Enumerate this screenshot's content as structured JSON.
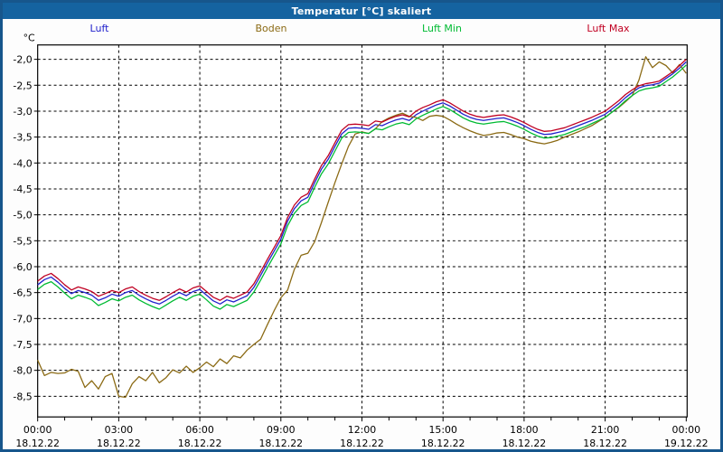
{
  "header": {
    "title": "Temperatur [°C] skaliert"
  },
  "colors": {
    "titlebar_bg": "#1563a0",
    "window_border": "#17568c",
    "titlebar_text": "#ffffff",
    "axis": "#000000",
    "grid": "#000000",
    "plot_bg": "#ffffff"
  },
  "chart_data": {
    "type": "line",
    "title": "Temperatur [°C] skaliert",
    "ylabel": "°C",
    "xlabel": "",
    "grid": true,
    "legend_position": "top",
    "x_start_hours": 0,
    "x_end_hours": 24,
    "x_step_hours": 0.25,
    "ylim": [
      -8.5,
      -2.0
    ],
    "y_ticks": [
      {
        "value": -2.0,
        "label": "-2,0"
      },
      {
        "value": -2.5,
        "label": "-2,5"
      },
      {
        "value": -3.0,
        "label": "-3,0"
      },
      {
        "value": -3.5,
        "label": "-3,5"
      },
      {
        "value": -4.0,
        "label": "-4,0"
      },
      {
        "value": -4.5,
        "label": "-4,5"
      },
      {
        "value": -5.0,
        "label": "-5,0"
      },
      {
        "value": -5.5,
        "label": "-5,5"
      },
      {
        "value": -6.0,
        "label": "-6,0"
      },
      {
        "value": -6.5,
        "label": "-6,5"
      },
      {
        "value": -7.0,
        "label": "-7,0"
      },
      {
        "value": -7.5,
        "label": "-7,5"
      },
      {
        "value": -8.0,
        "label": "-8,0"
      },
      {
        "value": -8.5,
        "label": "-8,5"
      }
    ],
    "x_ticks": [
      {
        "t": 0,
        "time": "00:00",
        "date": "18.12.22"
      },
      {
        "t": 3,
        "time": "03:00",
        "date": "18.12.22"
      },
      {
        "t": 6,
        "time": "06:00",
        "date": "18.12.22"
      },
      {
        "t": 9,
        "time": "09:00",
        "date": "18.12.22"
      },
      {
        "t": 12,
        "time": "12:00",
        "date": "18.12.22"
      },
      {
        "t": 15,
        "time": "15:00",
        "date": "18.12.22"
      },
      {
        "t": 18,
        "time": "18:00",
        "date": "18.12.22"
      },
      {
        "t": 21,
        "time": "21:00",
        "date": "18.12.22"
      },
      {
        "t": 24,
        "time": "00:00",
        "date": "19.12.22"
      }
    ],
    "x_minor_tick_hours": 1,
    "series": [
      {
        "name": "Luft",
        "color": "#2222cc",
        "values": [
          -6.35,
          -6.25,
          -6.2,
          -6.3,
          -6.42,
          -6.52,
          -6.46,
          -6.5,
          -6.55,
          -6.65,
          -6.6,
          -6.53,
          -6.57,
          -6.5,
          -6.46,
          -6.55,
          -6.62,
          -6.68,
          -6.72,
          -6.65,
          -6.57,
          -6.5,
          -6.56,
          -6.48,
          -6.44,
          -6.55,
          -6.66,
          -6.72,
          -6.64,
          -6.68,
          -6.62,
          -6.56,
          -6.4,
          -6.17,
          -5.93,
          -5.7,
          -5.47,
          -5.12,
          -4.88,
          -4.73,
          -4.66,
          -4.38,
          -4.12,
          -3.93,
          -3.68,
          -3.44,
          -3.33,
          -3.32,
          -3.33,
          -3.35,
          -3.26,
          -3.28,
          -3.22,
          -3.17,
          -3.14,
          -3.18,
          -3.07,
          -3.0,
          -2.94,
          -2.88,
          -2.84,
          -2.9,
          -2.98,
          -3.06,
          -3.12,
          -3.16,
          -3.18,
          -3.16,
          -3.14,
          -3.13,
          -3.17,
          -3.22,
          -3.28,
          -3.35,
          -3.41,
          -3.45,
          -3.44,
          -3.41,
          -3.38,
          -3.33,
          -3.28,
          -3.23,
          -3.18,
          -3.12,
          -3.06,
          -2.96,
          -2.86,
          -2.74,
          -2.64,
          -2.55,
          -2.51,
          -2.49,
          -2.46,
          -2.37,
          -2.28,
          -2.17,
          -2.05
        ]
      },
      {
        "name": "Boden",
        "color": "#8b6a14",
        "values": [
          -7.8,
          -8.1,
          -8.04,
          -8.06,
          -8.05,
          -7.98,
          -8.02,
          -8.33,
          -8.2,
          -8.36,
          -8.12,
          -8.06,
          -8.5,
          -8.52,
          -8.26,
          -8.12,
          -8.2,
          -8.04,
          -8.24,
          -8.14,
          -7.99,
          -8.05,
          -7.92,
          -8.04,
          -7.95,
          -7.84,
          -7.93,
          -7.78,
          -7.87,
          -7.72,
          -7.76,
          -7.61,
          -7.5,
          -7.4,
          -7.12,
          -6.85,
          -6.6,
          -6.45,
          -6.05,
          -5.78,
          -5.74,
          -5.52,
          -5.15,
          -4.76,
          -4.38,
          -4.02,
          -3.68,
          -3.44,
          -3.4,
          -3.43,
          -3.34,
          -3.2,
          -3.13,
          -3.08,
          -3.04,
          -3.1,
          -3.12,
          -3.18,
          -3.1,
          -3.08,
          -3.1,
          -3.17,
          -3.25,
          -3.32,
          -3.38,
          -3.43,
          -3.47,
          -3.45,
          -3.42,
          -3.41,
          -3.45,
          -3.5,
          -3.53,
          -3.58,
          -3.61,
          -3.63,
          -3.6,
          -3.56,
          -3.5,
          -3.45,
          -3.4,
          -3.34,
          -3.28,
          -3.2,
          -3.12,
          -3.02,
          -2.93,
          -2.82,
          -2.7,
          -2.4,
          -1.95,
          -2.16,
          -2.05,
          -2.12,
          -2.26,
          -2.1,
          -2.27
        ]
      },
      {
        "name": "Luft Min",
        "color": "#00bb33",
        "values": [
          -6.44,
          -6.34,
          -6.29,
          -6.39,
          -6.51,
          -6.62,
          -6.55,
          -6.59,
          -6.64,
          -6.75,
          -6.69,
          -6.62,
          -6.66,
          -6.59,
          -6.55,
          -6.64,
          -6.71,
          -6.77,
          -6.82,
          -6.74,
          -6.66,
          -6.59,
          -6.65,
          -6.57,
          -6.53,
          -6.64,
          -6.76,
          -6.82,
          -6.73,
          -6.77,
          -6.71,
          -6.65,
          -6.49,
          -6.26,
          -6.02,
          -5.79,
          -5.56,
          -5.21,
          -4.97,
          -4.82,
          -4.75,
          -4.47,
          -4.21,
          -4.02,
          -3.77,
          -3.52,
          -3.41,
          -3.4,
          -3.41,
          -3.43,
          -3.34,
          -3.36,
          -3.3,
          -3.25,
          -3.22,
          -3.26,
          -3.15,
          -3.08,
          -3.02,
          -2.96,
          -2.91,
          -2.97,
          -3.05,
          -3.13,
          -3.19,
          -3.23,
          -3.25,
          -3.23,
          -3.21,
          -3.2,
          -3.24,
          -3.29,
          -3.35,
          -3.42,
          -3.48,
          -3.52,
          -3.51,
          -3.48,
          -3.45,
          -3.4,
          -3.35,
          -3.3,
          -3.24,
          -3.18,
          -3.12,
          -3.02,
          -2.92,
          -2.8,
          -2.7,
          -2.61,
          -2.57,
          -2.55,
          -2.52,
          -2.43,
          -2.34,
          -2.23,
          -2.11
        ]
      },
      {
        "name": "Luft Max",
        "color": "#c00022",
        "values": [
          -6.28,
          -6.18,
          -6.13,
          -6.23,
          -6.35,
          -6.45,
          -6.39,
          -6.43,
          -6.48,
          -6.57,
          -6.52,
          -6.46,
          -6.5,
          -6.43,
          -6.39,
          -6.48,
          -6.55,
          -6.61,
          -6.65,
          -6.58,
          -6.5,
          -6.43,
          -6.49,
          -6.41,
          -6.37,
          -6.48,
          -6.59,
          -6.65,
          -6.57,
          -6.61,
          -6.55,
          -6.49,
          -6.33,
          -6.1,
          -5.86,
          -5.63,
          -5.4,
          -5.05,
          -4.81,
          -4.66,
          -4.59,
          -4.31,
          -4.05,
          -3.86,
          -3.61,
          -3.37,
          -3.26,
          -3.25,
          -3.26,
          -3.28,
          -3.19,
          -3.21,
          -3.15,
          -3.1,
          -3.07,
          -3.11,
          -3.0,
          -2.93,
          -2.88,
          -2.82,
          -2.78,
          -2.84,
          -2.92,
          -3.0,
          -3.06,
          -3.1,
          -3.12,
          -3.1,
          -3.08,
          -3.07,
          -3.11,
          -3.16,
          -3.22,
          -3.29,
          -3.35,
          -3.39,
          -3.38,
          -3.35,
          -3.32,
          -3.27,
          -3.22,
          -3.17,
          -3.12,
          -3.06,
          -3.0,
          -2.9,
          -2.8,
          -2.68,
          -2.59,
          -2.51,
          -2.47,
          -2.45,
          -2.42,
          -2.33,
          -2.24,
          -2.12,
          -2.0
        ]
      }
    ]
  }
}
